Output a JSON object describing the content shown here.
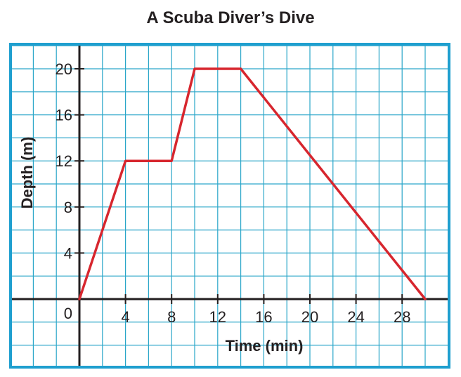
{
  "chart_data": {
    "type": "line",
    "title": "A Scuba Diver’s Dive",
    "xlabel": "Time (min)",
    "ylabel": "Depth (m)",
    "origin_label": "0",
    "x_ticks": [
      4,
      8,
      12,
      16,
      20,
      24,
      28
    ],
    "y_ticks": [
      4,
      8,
      12,
      16,
      20
    ],
    "xlim": [
      -6,
      32
    ],
    "ylim": [
      -6,
      22
    ],
    "grid": true,
    "series": [
      {
        "x": [
          0,
          4,
          8,
          10,
          14,
          30
        ],
        "y": [
          0,
          12,
          12,
          20,
          20,
          0
        ]
      }
    ],
    "colors": {
      "line": "#d7262e",
      "grid": "#2aa6c9",
      "frame": "#1f9fcf",
      "axis": "#231f20"
    }
  }
}
